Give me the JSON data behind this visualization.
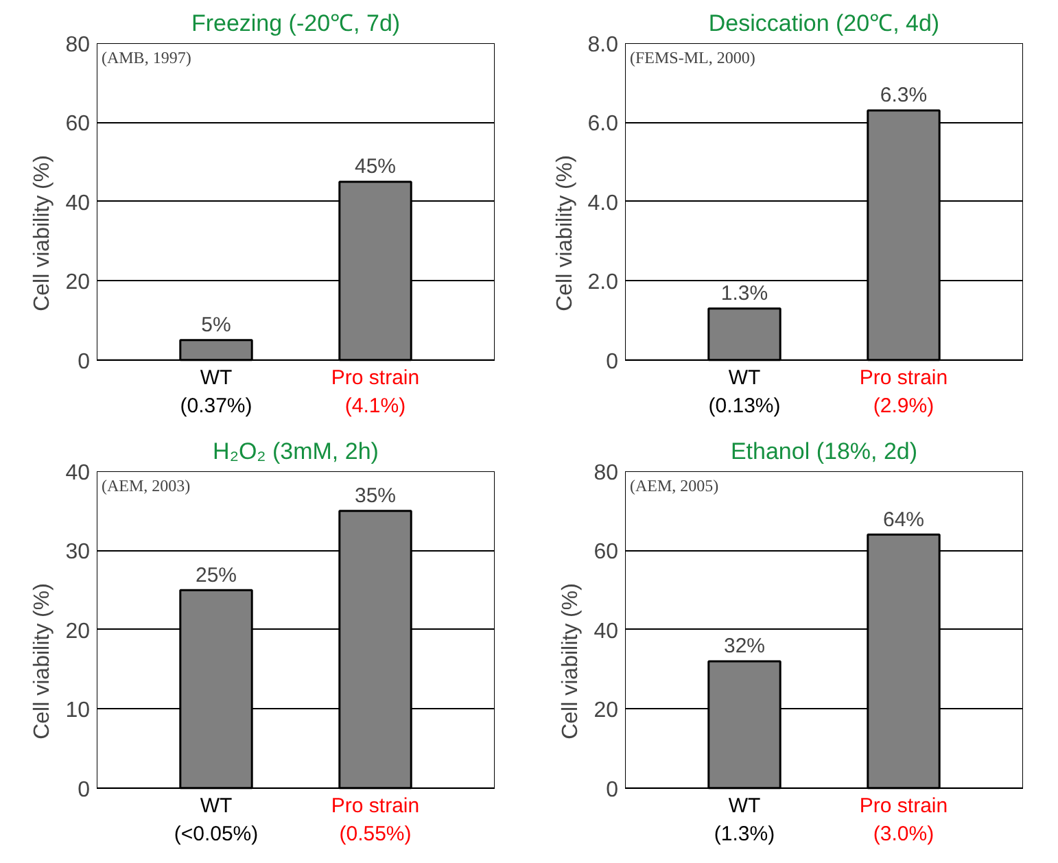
{
  "chart_data": [
    {
      "type": "bar",
      "title": "Freezing (-20℃, 7d)",
      "ylabel": "Cell viability (%)",
      "categories": [
        "WT\n(0.37%)",
        "Pro strain\n(4.1%)"
      ],
      "values": [
        5,
        45
      ],
      "value_labels": [
        "5%",
        "45%"
      ],
      "color": "#808080",
      "ylim": [
        0,
        80
      ],
      "yticks": [
        0,
        20,
        40,
        60,
        80
      ],
      "grid": "y",
      "annotations": [
        "(AMB, 1997)"
      ]
    },
    {
      "type": "bar",
      "title": "Desiccation (20℃, 4d)",
      "ylabel": "Cell viability (%)",
      "categories": [
        "WT\n(0.13%)",
        "Pro strain\n(2.9%)"
      ],
      "values": [
        1.3,
        6.3
      ],
      "value_labels": [
        "1.3%",
        "6.3%"
      ],
      "color": "#808080",
      "ylim": [
        0,
        8
      ],
      "yticks": [
        0,
        {
          "value": 2,
          "label": "2.0"
        },
        {
          "value": 4,
          "label": "4.0"
        },
        {
          "value": 6,
          "label": "6.0"
        },
        {
          "value": 8,
          "label": "8.0"
        }
      ],
      "grid": "y",
      "annotations": [
        "(FEMS-ML, 2000)"
      ]
    },
    {
      "type": "bar",
      "title": "H₂O₂ (3mM, 2h)",
      "ylabel": "Cell viability (%)",
      "categories": [
        "WT\n(<0.05%)",
        "Pro strain\n(0.55%)"
      ],
      "values": [
        25,
        35
      ],
      "value_labels": [
        "25%",
        "35%"
      ],
      "color": "#808080",
      "ylim": [
        0,
        40
      ],
      "yticks": [
        0,
        10,
        20,
        30,
        40
      ],
      "grid": "y",
      "annotations": [
        "(AEM, 2003)"
      ]
    },
    {
      "type": "bar",
      "title": "Ethanol (18%, 2d)",
      "ylabel": "Cell viability (%)",
      "categories": [
        "WT\n(1.3%)",
        "Pro strain\n(3.0%)"
      ],
      "values": [
        32,
        64
      ],
      "value_labels": [
        "32%",
        "64%"
      ],
      "color": "#808080",
      "ylim": [
        0,
        80
      ],
      "yticks": [
        0,
        20,
        40,
        60,
        80
      ],
      "grid": "y",
      "annotations": [
        "(AEM, 2005)"
      ]
    }
  ]
}
